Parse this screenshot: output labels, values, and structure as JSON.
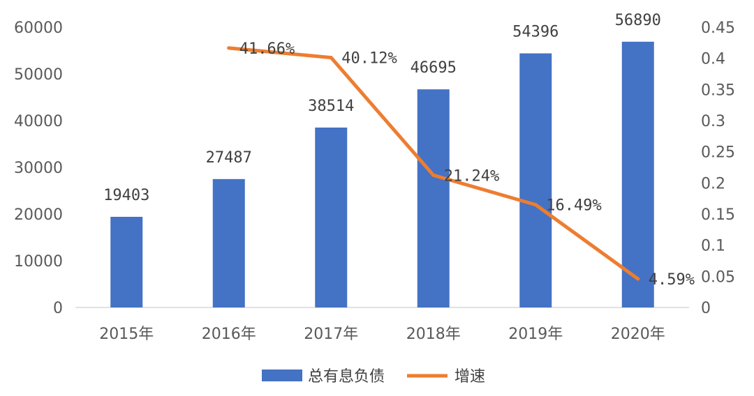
{
  "chart_data": {
    "type": "bar",
    "categories": [
      "2015年",
      "2016年",
      "2017年",
      "2018年",
      "2019年",
      "2020年"
    ],
    "series": [
      {
        "name": "总有息负债",
        "type": "bar",
        "axis": "left",
        "color": "#4472C4",
        "values": [
          19403,
          27487,
          38514,
          46695,
          54396,
          56890
        ],
        "labels": [
          "19403",
          "27487",
          "38514",
          "46695",
          "54396",
          "56890"
        ]
      },
      {
        "name": "增速",
        "type": "line",
        "axis": "right",
        "color": "#ED7D31",
        "values": [
          null,
          0.4166,
          0.4012,
          0.2124,
          0.1649,
          0.0459
        ],
        "labels": [
          "",
          "41.66%",
          "40.12%",
          "21.24%",
          "16.49%",
          "4.59%"
        ]
      }
    ],
    "y_left": {
      "ylim": [
        0,
        60000
      ],
      "ticks": [
        "0",
        "10000",
        "20000",
        "30000",
        "40000",
        "50000",
        "60000"
      ]
    },
    "y_right": {
      "ylim": [
        0,
        0.45
      ],
      "ticks": [
        "0",
        "0.05",
        "0.1",
        "0.15",
        "0.2",
        "0.25",
        "0.3",
        "0.35",
        "0.4",
        "0.45"
      ]
    },
    "title": "",
    "xlabel": "",
    "ylabel": "",
    "grid": false,
    "legend_position": "bottom"
  }
}
